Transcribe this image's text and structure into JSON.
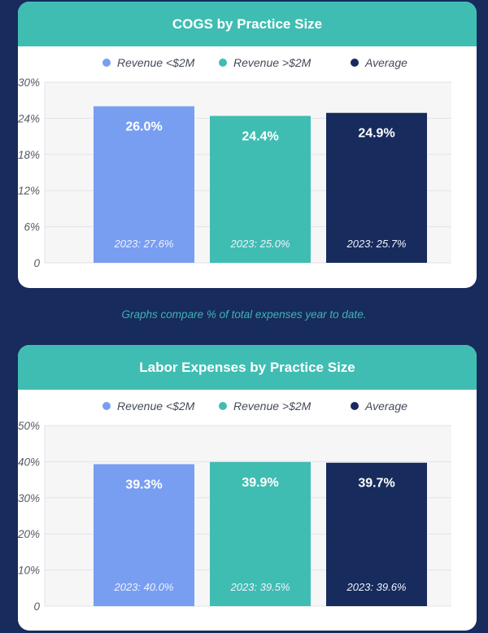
{
  "colors": {
    "background": "#172b5c",
    "header": "#40bdb2",
    "revenue_lt_2m": "#789ef2",
    "revenue_gt_2m": "#40bdb2",
    "average": "#172b5c",
    "caption": "#3fb3b4"
  },
  "caption": "Graphs compare % of total expenses year to date.",
  "chart_data": [
    {
      "type": "bar",
      "title": "COGS by Practice Size",
      "categories": [
        "Revenue <$2M",
        "Revenue >$2M",
        "Average"
      ],
      "legend": [
        "Revenue <$2M",
        "Revenue >$2M",
        "Average"
      ],
      "legend_position": "top",
      "values": [
        26.0,
        24.4,
        24.9
      ],
      "value_labels": [
        "26.0%",
        "24.4%",
        "24.9%"
      ],
      "prior_labels": [
        "2023: 27.6%",
        "2023: 25.0%",
        "2023: 25.7%"
      ],
      "prior_values": [
        27.6,
        25.0,
        25.7
      ],
      "yticks": [
        "0",
        "6%",
        "12%",
        "18%",
        "24%",
        "30%"
      ],
      "ytick_values": [
        0,
        6,
        12,
        18,
        24,
        30
      ],
      "ylim": [
        0,
        30
      ],
      "grid": true,
      "xlabel": "",
      "ylabel": ""
    },
    {
      "type": "bar",
      "title": "Labor Expenses by Practice Size",
      "categories": [
        "Revenue <$2M",
        "Revenue >$2M",
        "Average"
      ],
      "legend": [
        "Revenue <$2M",
        "Revenue >$2M",
        "Average"
      ],
      "legend_position": "top",
      "values": [
        39.3,
        39.9,
        39.7
      ],
      "value_labels": [
        "39.3%",
        "39.9%",
        "39.7%"
      ],
      "prior_labels": [
        "2023: 40.0%",
        "2023: 39.5%",
        "2023: 39.6%"
      ],
      "prior_values": [
        40.0,
        39.5,
        39.6
      ],
      "yticks": [
        "0",
        "10%",
        "20%",
        "30%",
        "40%",
        "50%"
      ],
      "ytick_values": [
        0,
        10,
        20,
        30,
        40,
        50
      ],
      "ylim": [
        0,
        50
      ],
      "grid": true,
      "xlabel": "",
      "ylabel": ""
    }
  ]
}
